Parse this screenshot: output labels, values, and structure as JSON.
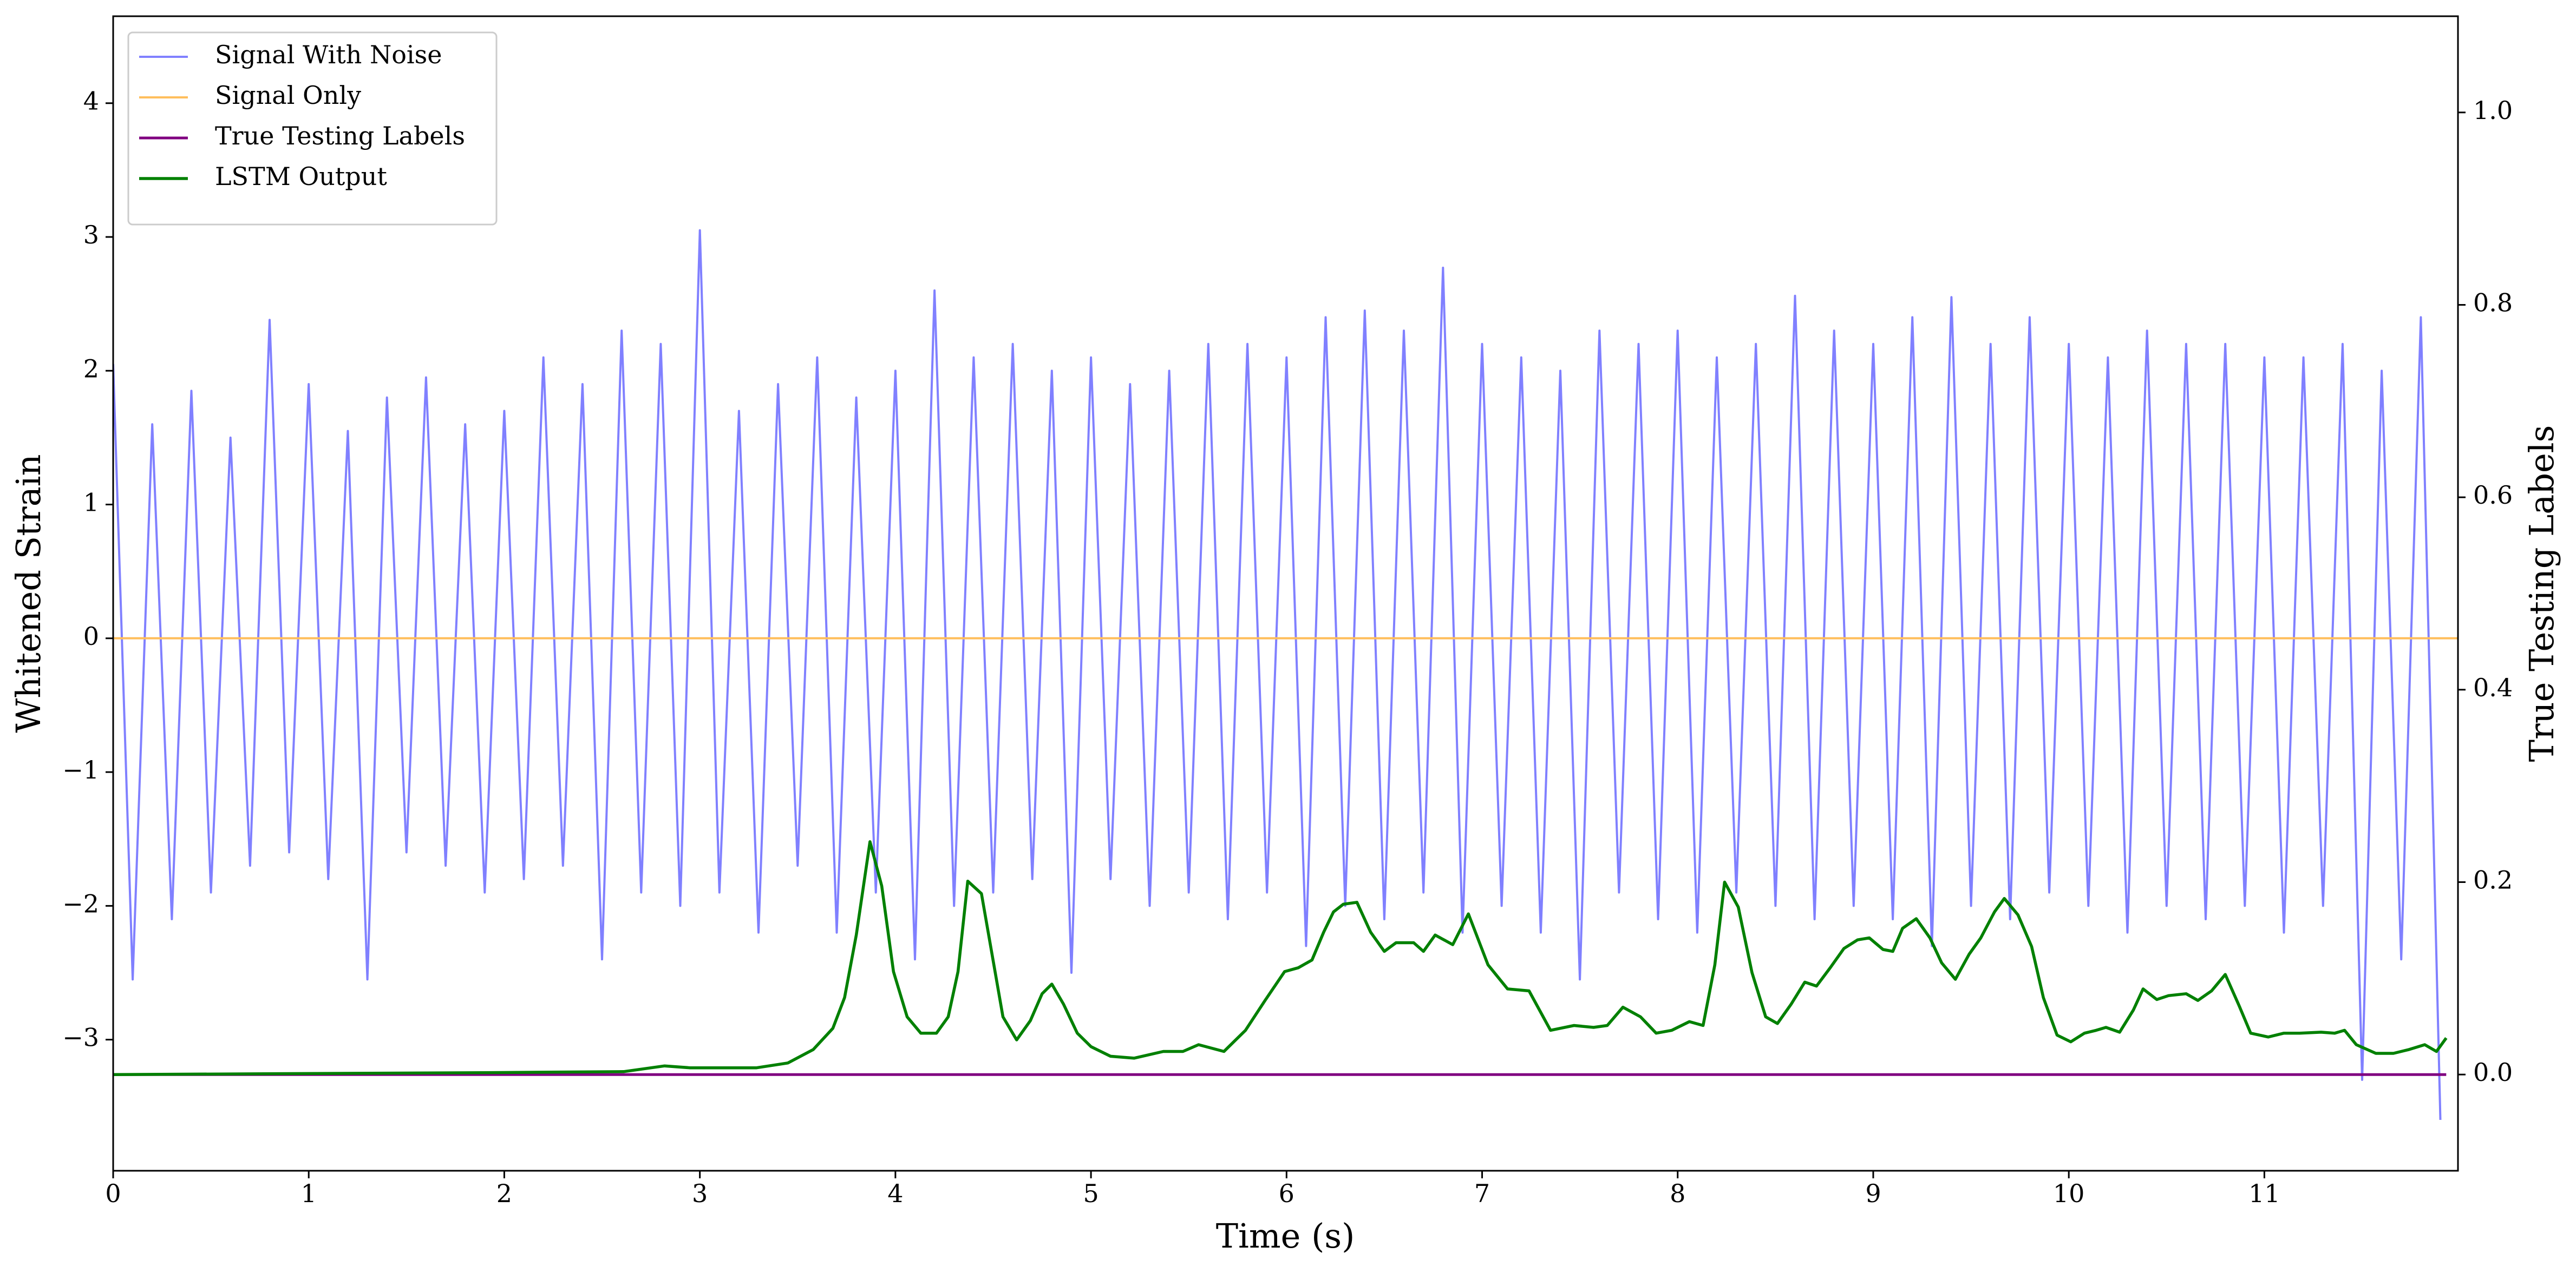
{
  "chart_data": {
    "type": "line",
    "xlabel": "Time (s)",
    "ylabel": "Whitened Strain",
    "y2label": "True Testing Labels",
    "xlim": [
      0,
      11.99
    ],
    "ylim": [
      -3.98,
      4.65
    ],
    "y2lim": [
      -0.1,
      1.1
    ],
    "xticks": [
      0,
      1,
      2,
      3,
      4,
      5,
      6,
      7,
      8,
      9,
      10,
      11
    ],
    "yticks": [
      {
        "value": -3,
        "label": "−3"
      },
      {
        "value": -2,
        "label": "−2"
      },
      {
        "value": -1,
        "label": "−1"
      },
      0,
      1,
      2,
      3,
      4
    ],
    "y2ticks": [
      {
        "value": 0,
        "label": "0.0"
      },
      {
        "value": 0.2,
        "label": "0.2"
      },
      {
        "value": 0.4,
        "label": "0.4"
      },
      {
        "value": 0.6,
        "label": "0.6"
      },
      {
        "value": 0.8,
        "label": "0.8"
      },
      {
        "value": 1,
        "label": "1.0"
      }
    ],
    "legend": "upper left",
    "grid": false,
    "series": [
      {
        "name": "Signal With Noise",
        "color": "#8080ff",
        "width": 4,
        "x": [
          0,
          0.1,
          0.2,
          0.3,
          0.4,
          0.5,
          0.6,
          0.7,
          0.8,
          0.9,
          1,
          1.1,
          1.2,
          1.3,
          1.4,
          1.5,
          1.6,
          1.7,
          1.8,
          1.9,
          2,
          2.1,
          2.2,
          2.3,
          2.4,
          2.5,
          2.6,
          2.7,
          2.8,
          2.9,
          3,
          3.1,
          3.2,
          3.3,
          3.4,
          3.5,
          3.6,
          3.7,
          3.8,
          3.9,
          4,
          4.1,
          4.2,
          4.3,
          4.4,
          4.5,
          4.6,
          4.7,
          4.8,
          4.9,
          5,
          5.1,
          5.2,
          5.3,
          5.4,
          5.5,
          5.6,
          5.7,
          5.8,
          5.9,
          6,
          6.1,
          6.2,
          6.3,
          6.4,
          6.5,
          6.6,
          6.7,
          6.8,
          6.9,
          7,
          7.1,
          7.2,
          7.3,
          7.4,
          7.5,
          7.6,
          7.7,
          7.8,
          7.9,
          8,
          8.1,
          8.2,
          8.3,
          8.4,
          8.5,
          8.6,
          8.7,
          8.8,
          8.9,
          9,
          9.1,
          9.2,
          9.3,
          9.4,
          9.5,
          9.6,
          9.7,
          9.8,
          9.9,
          10,
          10.1,
          10.2,
          10.3,
          10.4,
          10.5,
          10.6,
          10.7,
          10.8,
          10.9,
          11,
          11.1,
          11.2,
          11.3,
          11.4,
          11.5,
          11.6,
          11.7,
          11.8,
          11.9
        ],
        "values": [
          2.05,
          -2.55,
          1.6,
          -2.1,
          1.85,
          -1.9,
          1.5,
          -1.7,
          2.38,
          -1.6,
          1.9,
          -1.8,
          1.55,
          -2.55,
          1.8,
          -1.6,
          1.95,
          -1.7,
          1.6,
          -1.9,
          1.7,
          -1.8,
          2.1,
          -1.7,
          1.9,
          -2.4,
          2.3,
          -1.9,
          2.2,
          -2.0,
          3.05,
          -1.9,
          1.7,
          -2.2,
          1.9,
          -1.7,
          2.1,
          -2.2,
          1.8,
          -1.9,
          2.0,
          -2.4,
          2.6,
          -2.0,
          2.1,
          -1.9,
          2.2,
          -1.8,
          2.0,
          -2.5,
          2.1,
          -1.8,
          1.9,
          -2.0,
          2.0,
          -1.9,
          2.2,
          -2.1,
          2.2,
          -1.9,
          2.1,
          -2.3,
          2.4,
          -2.0,
          2.45,
          -2.1,
          2.3,
          -1.9,
          2.77,
          -2.2,
          2.2,
          -2.0,
          2.1,
          -2.2,
          2.0,
          -2.55,
          2.3,
          -1.9,
          2.2,
          -2.1,
          2.3,
          -2.2,
          2.1,
          -1.9,
          2.2,
          -2.0,
          2.56,
          -2.1,
          2.3,
          -2.0,
          2.2,
          -2.1,
          2.4,
          -2.3,
          2.55,
          -2.0,
          2.2,
          -2.1,
          2.4,
          -1.9,
          2.2,
          -2.0,
          2.1,
          -2.2,
          2.3,
          -2.0,
          2.2,
          -2.1,
          2.2,
          -2.0,
          2.1,
          -2.2,
          2.1,
          -2.0,
          2.2,
          -3.3,
          2.0,
          -2.4,
          2.4,
          -3.6
        ]
      },
      {
        "name": "Signal Only",
        "color": "#ffbe5c",
        "width": 4,
        "x": [
          0,
          11.99
        ],
        "values": [
          0,
          0
        ]
      },
      {
        "name": "True Testing Labels",
        "color": "#800080",
        "width": 5,
        "axis": "y2",
        "x": [
          0,
          11.93
        ],
        "values": [
          0,
          0
        ]
      },
      {
        "name": "LSTM Output",
        "color": "#008000",
        "width": 5.5,
        "axis": "y2",
        "x": [
          0,
          1.94,
          2.61,
          2.82,
          2.95,
          3.29,
          3.45,
          3.58,
          3.68,
          3.74,
          3.8,
          3.87,
          3.93,
          3.99,
          4.06,
          4.13,
          4.21,
          4.27,
          4.32,
          4.37,
          4.44,
          4.55,
          4.62,
          4.69,
          4.75,
          4.8,
          4.86,
          4.93,
          5,
          5.1,
          5.22,
          5.37,
          5.47,
          5.55,
          5.68,
          5.79,
          5.89,
          5.99,
          6.06,
          6.13,
          6.19,
          6.24,
          6.29,
          6.36,
          6.43,
          6.5,
          6.56,
          6.65,
          6.7,
          6.76,
          6.85,
          6.93,
          7.03,
          7.13,
          7.24,
          7.35,
          7.47,
          7.57,
          7.64,
          7.72,
          7.81,
          7.89,
          7.97,
          8.06,
          8.13,
          8.19,
          8.24,
          8.31,
          8.38,
          8.45,
          8.51,
          8.58,
          8.65,
          8.71,
          8.78,
          8.85,
          8.92,
          8.98,
          9.05,
          9.1,
          9.15,
          9.22,
          9.29,
          9.35,
          9.42,
          9.49,
          9.55,
          9.62,
          9.67,
          9.74,
          9.81,
          9.87,
          9.94,
          10.01,
          10.08,
          10.14,
          10.19,
          10.26,
          10.33,
          10.38,
          10.45,
          10.51,
          10.6,
          10.66,
          10.73,
          10.8,
          10.87,
          10.93,
          11.02,
          11.1,
          11.18,
          11.29,
          11.36,
          11.41,
          11.47,
          11.57,
          11.66,
          11.74,
          11.82,
          11.88,
          11.93
        ],
        "values": [
          0,
          0.002,
          0.003,
          0.009,
          0.007,
          0.007,
          0.012,
          0.026,
          0.048,
          0.08,
          0.145,
          0.242,
          0.196,
          0.107,
          0.06,
          0.043,
          0.043,
          0.06,
          0.107,
          0.201,
          0.188,
          0.06,
          0.036,
          0.056,
          0.084,
          0.094,
          0.073,
          0.043,
          0.029,
          0.019,
          0.017,
          0.024,
          0.024,
          0.031,
          0.024,
          0.046,
          0.077,
          0.107,
          0.111,
          0.119,
          0.148,
          0.169,
          0.177,
          0.179,
          0.148,
          0.128,
          0.137,
          0.137,
          0.128,
          0.145,
          0.135,
          0.167,
          0.114,
          0.089,
          0.087,
          0.046,
          0.051,
          0.049,
          0.051,
          0.07,
          0.06,
          0.043,
          0.046,
          0.055,
          0.051,
          0.114,
          0.2,
          0.174,
          0.106,
          0.06,
          0.053,
          0.073,
          0.096,
          0.092,
          0.111,
          0.131,
          0.14,
          0.142,
          0.13,
          0.128,
          0.152,
          0.162,
          0.142,
          0.116,
          0.099,
          0.125,
          0.142,
          0.169,
          0.183,
          0.166,
          0.133,
          0.08,
          0.041,
          0.034,
          0.043,
          0.046,
          0.049,
          0.044,
          0.067,
          0.089,
          0.078,
          0.082,
          0.084,
          0.077,
          0.087,
          0.104,
          0.072,
          0.043,
          0.039,
          0.043,
          0.043,
          0.044,
          0.043,
          0.046,
          0.031,
          0.022,
          0.022,
          0.026,
          0.031,
          0.024,
          0.038
        ]
      }
    ]
  }
}
